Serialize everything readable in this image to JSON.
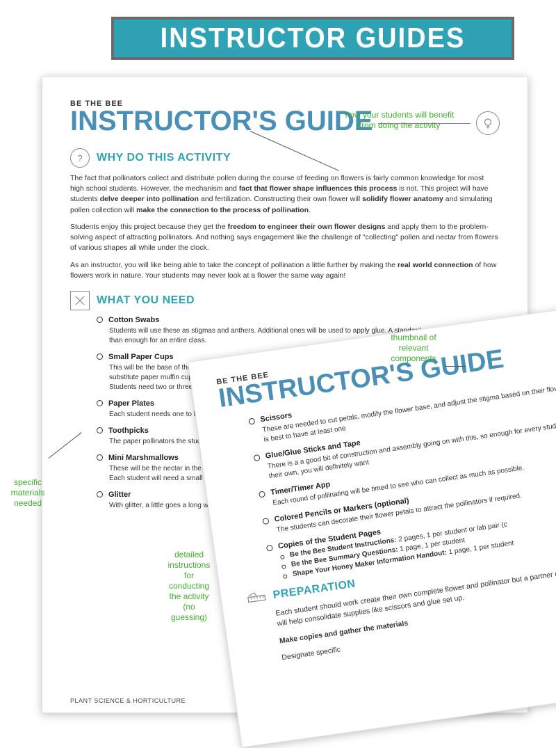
{
  "colors": {
    "teal": "#2fa3b5",
    "blue": "#4a8fb5",
    "green": "#3fae2a",
    "text": "#333333",
    "border_gray": "#888888"
  },
  "banner": {
    "label": "INSTRUCTOR GUIDES"
  },
  "callouts": {
    "benefit": "how your students will benefit\nfrom doing the activity",
    "thumbnail": "thumbnail of\nrelevant\ncomponents",
    "materials": "specific\nmaterials\nneeded",
    "instructions": "detailed\ninstructions\nfor\nconducting\nthe activity\n(no\nguessing)"
  },
  "doc": {
    "kicker": "BE THE BEE",
    "title": "INSTRUCTOR'S GUIDE",
    "footer": "PLANT SCIENCE & HORTICULTURE",
    "sections": {
      "why": {
        "heading": "WHY DO THIS ACTIVITY",
        "paragraphs": [
          "The fact that pollinators collect and distribute pollen during the course of feeding on flowers is fairly common knowledge for most high school students. However, the mechanism and <b>fact that flower shape influences this process</b> is not. This project will have students <b>delve deeper into pollination</b> and fertilization. Constructing their own flower will <b>solidify flower anatomy</b> and simulating pollen collection will <b>make the connection to the process of pollination</b>.",
          "Students enjoy this project because they get the <b>freedom to engineer their own flower designs</b> and apply them to the problem-solving aspect of attracting pollinators. And nothing says engagement like the challenge of \"collecting\" pollen and nectar from flowers of various shapes all while under the clock.",
          "As an instructor, you will like being able to take the concept of pollination a little further by making the <b>real world connection</b> of how flowers work in nature. Your students may never look at a flower the same way again!"
        ]
      },
      "need": {
        "heading": "WHAT YOU NEED",
        "items_back": [
          {
            "name": "Cotton Swabs",
            "desc": "Students will use these as stigmas and anthers. Additional ones will be used to apply glue. A standard generic box will be more than enough for an entire class."
          },
          {
            "name": "Small Paper Cups",
            "desc": "This will be the base of the flower where the nectar is stored. The little ones typically used for mouthwash work great. You can substitute paper muffin cups but the sides may not support the petals and anthers.\nStudents need two or three cups each — one to build with and one to put glitter in when constructing their flower."
          },
          {
            "name": "Paper Plates",
            "desc": "Each student needs one to be their work surface. If small groups work together on"
          },
          {
            "name": "Toothpicks",
            "desc": "The paper pollinators the students make will have a proboscis that is a toothpick. Have a few extra."
          },
          {
            "name": "Mini Marshmallows",
            "desc": "These will be the nectar in the flower for the marshmallow to feed on it. Also used to hook each O with the tool.\nEach student will need a small handful, so have <b>at least one full bag</b>."
          },
          {
            "name": "Glitter",
            "desc": "With glitter, a little goes a long way, so distribute small amounts. Make sure you have <b>a variety of colors</b> for the flowers."
          }
        ],
        "items_front": [
          {
            "name": "Scissors",
            "desc": "These are needed to cut petals, modify the flower base, and adjust the stigma based on their flower design. It is best to have at least one"
          },
          {
            "name": "Glue/Glue Sticks and Tape",
            "desc": "There is a a good bit of construction and assembly going on with this, so enough for every student to have their own, you will definitely want"
          },
          {
            "name": "Timer/Timer App",
            "desc": "Each round of pollinating will be timed to see who can collect as much as possible."
          },
          {
            "name": "Colored Pencils or Markers (optional)",
            "desc": "The students can decorate their flower petals to attract the pollinators if required."
          },
          {
            "name": "Copies of the Student Pages",
            "sub": [
              "Be the Bee Student Instructions: 2 pages, 1 per student or lab pair (c",
              "Be the Bee Summary Questions: 1 page, 1 per student",
              "Shape Your Honey Maker Information Handout: 1 page, 1 per student"
            ]
          }
        ]
      },
      "prep": {
        "heading": "PREPARATION",
        "paragraphs": [
          "Each student should work create their own complete flower and pollinator but a partner or in a small group will help consolidate supplies like scissors and glue set up.",
          "<b>Make copies and gather the materials</b>",
          "Designate specific"
        ]
      }
    }
  },
  "thumbnail": {
    "kicker": "BE THE BEE",
    "title": "BE THE BEE"
  }
}
